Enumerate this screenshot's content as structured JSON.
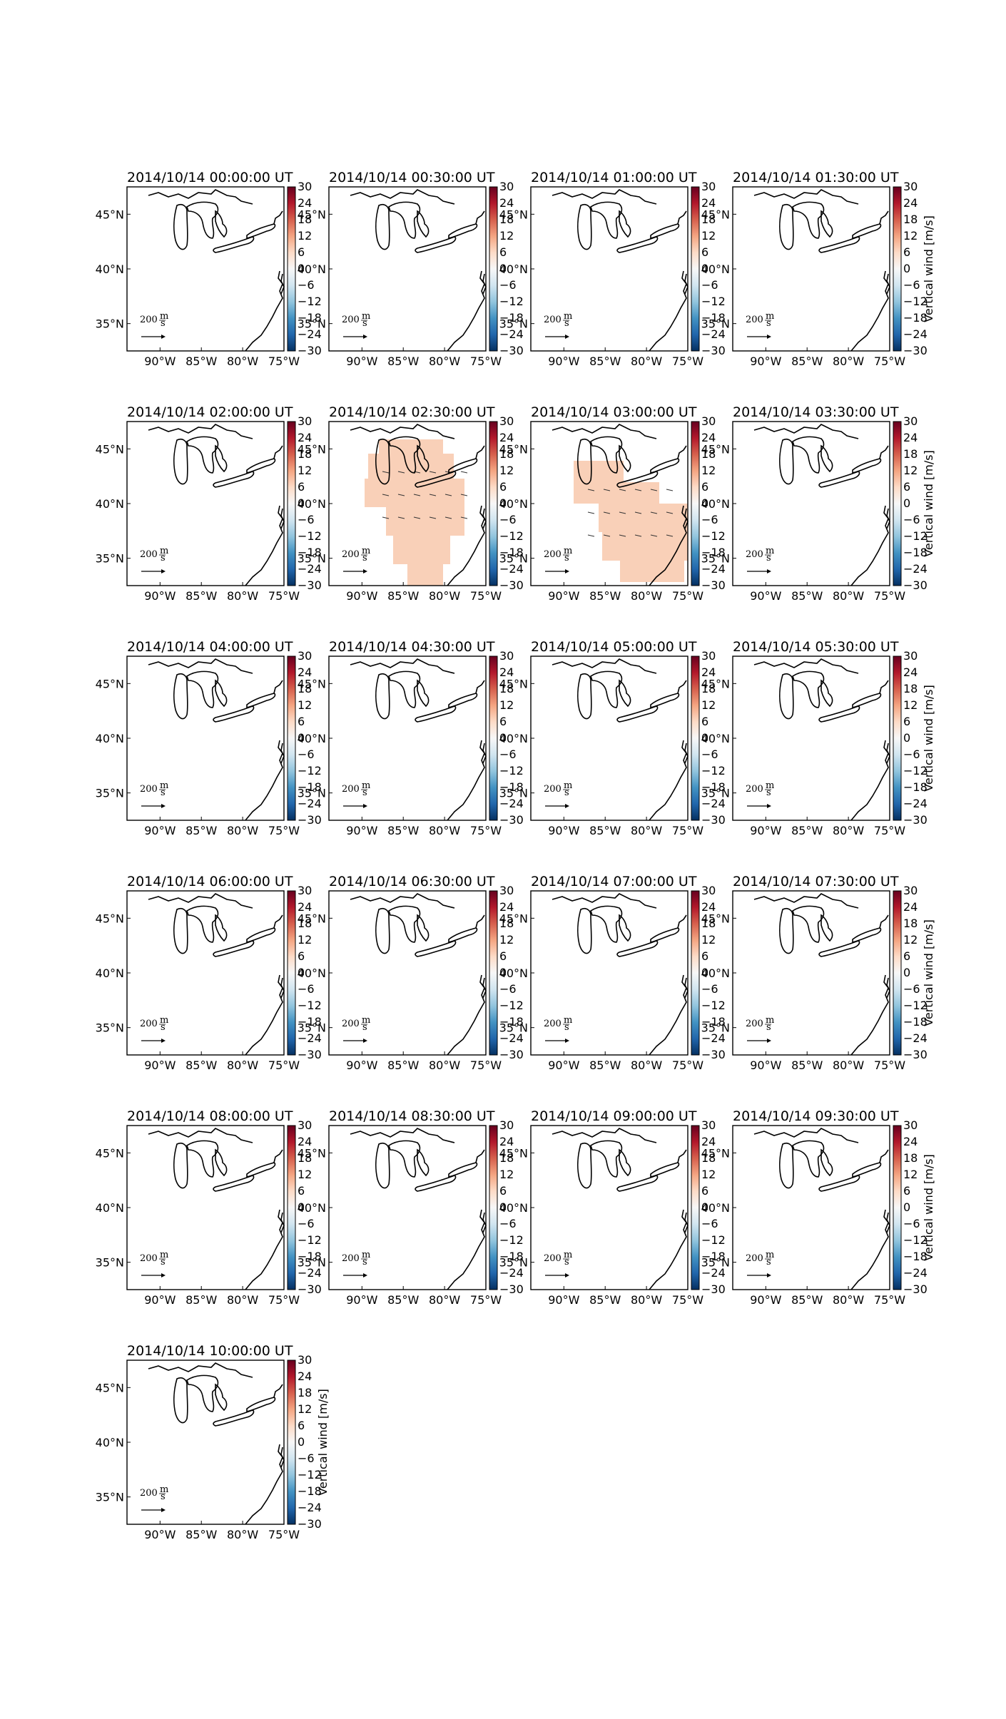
{
  "figure": {
    "colorbar": {
      "label": "Vertical wind [m/s]",
      "ticks": [
        "30",
        "24",
        "18",
        "12",
        "6",
        "0",
        "−6",
        "−12",
        "−18",
        "−24",
        "−30"
      ],
      "range": [
        -30,
        30
      ],
      "colormap": "RdBu_r",
      "colors": [
        "#053061",
        "#2166ac",
        "#4393c3",
        "#92c5de",
        "#d1e5f0",
        "#f7f7f7",
        "#fddbc7",
        "#f4a582",
        "#d6604d",
        "#b2182b",
        "#67001f"
      ]
    },
    "axes": {
      "lon_ticks": [
        "90°W",
        "85°W",
        "80°W",
        "75°W"
      ],
      "lat_ticks": [
        "45°N",
        "40°N",
        "35°N"
      ],
      "lon_range": [
        -94,
        -75
      ],
      "lat_range": [
        32.5,
        47.5
      ]
    },
    "quiver_key": {
      "value": "200",
      "unit_num": "m",
      "unit_den": "s"
    },
    "region_fill": "#f9d0b8",
    "panels": [
      {
        "title": "2014/10/14 00:00:00 UT",
        "wind_field": false
      },
      {
        "title": "2014/10/14 00:30:00 UT",
        "wind_field": false
      },
      {
        "title": "2014/10/14 01:00:00 UT",
        "wind_field": false
      },
      {
        "title": "2014/10/14 01:30:00 UT",
        "wind_field": false
      },
      {
        "title": "2014/10/14 02:00:00 UT",
        "wind_field": false
      },
      {
        "title": "2014/10/14 02:30:00 UT",
        "wind_field": true
      },
      {
        "title": "2014/10/14 03:00:00 UT",
        "wind_field": true
      },
      {
        "title": "2014/10/14 03:30:00 UT",
        "wind_field": false
      },
      {
        "title": "2014/10/14 04:00:00 UT",
        "wind_field": false
      },
      {
        "title": "2014/10/14 04:30:00 UT",
        "wind_field": false
      },
      {
        "title": "2014/10/14 05:00:00 UT",
        "wind_field": false
      },
      {
        "title": "2014/10/14 05:30:00 UT",
        "wind_field": false
      },
      {
        "title": "2014/10/14 06:00:00 UT",
        "wind_field": false
      },
      {
        "title": "2014/10/14 06:30:00 UT",
        "wind_field": false
      },
      {
        "title": "2014/10/14 07:00:00 UT",
        "wind_field": false
      },
      {
        "title": "2014/10/14 07:30:00 UT",
        "wind_field": false
      },
      {
        "title": "2014/10/14 08:00:00 UT",
        "wind_field": false
      },
      {
        "title": "2014/10/14 08:30:00 UT",
        "wind_field": false
      },
      {
        "title": "2014/10/14 09:00:00 UT",
        "wind_field": false
      },
      {
        "title": "2014/10/14 09:30:00 UT",
        "wind_field": false
      },
      {
        "title": "2014/10/14 10:00:00 UT",
        "wind_field": false
      }
    ]
  }
}
